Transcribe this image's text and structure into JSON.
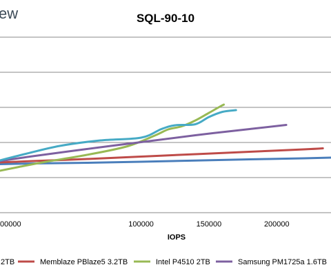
{
  "logo_text": "ew",
  "chart_data": {
    "type": "line",
    "title": "SQL-90-10",
    "xlabel": "IOPS",
    "ylabel": "",
    "xlim": [
      -4000,
      240000
    ],
    "x_ticks": [
      0,
      100000,
      150000,
      200000
    ],
    "x_tick_labels": [
      "00000",
      "100000",
      "150000",
      "200000"
    ],
    "grid": true,
    "legend_position": "bottom",
    "series": [
      {
        "name": "2TB",
        "legend_label": ".2TB",
        "color": "#4a7ebb",
        "x": [
          -4000,
          20000,
          60000,
          100000,
          140000,
          180000,
          220000,
          240000
        ],
        "y": [
          0.43,
          0.45,
          0.47,
          0.5,
          0.535,
          0.57,
          0.6,
          0.62
        ]
      },
      {
        "name": "Memblaze PBlaze5 3.2TB",
        "legend_label": "Memblaze PBlaze5 3.2TB",
        "color": "#be4b48",
        "x": [
          -4000,
          20000,
          60000,
          100000,
          140000,
          180000,
          220000,
          234000
        ],
        "y": [
          0.48,
          0.52,
          0.58,
          0.65,
          0.72,
          0.79,
          0.86,
          0.89
        ]
      },
      {
        "name": "Intel P4510 2TB",
        "legend_label": "Intel P4510 2TB",
        "color": "#98b954",
        "x": [
          -4000,
          10000,
          30000,
          60000,
          90000,
          110000,
          120000,
          130000,
          140000,
          150000,
          158000,
          161000
        ],
        "y": [
          0.24,
          0.35,
          0.5,
          0.7,
          0.95,
          1.26,
          1.44,
          1.53,
          1.7,
          1.92,
          2.1,
          2.16
        ]
      },
      {
        "name": "Samsung PM1725a 1.6TB",
        "legend_label": "Samsung PM1725a 1.6TB",
        "color": "#7d60a0",
        "x": [
          -4000,
          20000,
          60000,
          100000,
          140000,
          180000,
          207000
        ],
        "y": [
          0.52,
          0.66,
          0.87,
          1.07,
          1.27,
          1.45,
          1.57
        ]
      },
      {
        "name": "Light blue",
        "legend_label": "",
        "color": "#46aac5",
        "x": [
          -4000,
          15000,
          40000,
          70000,
          100000,
          115000,
          125000,
          140000,
          150000,
          160000,
          170000
        ],
        "y": [
          0.54,
          0.73,
          0.96,
          1.12,
          1.2,
          1.45,
          1.56,
          1.59,
          1.8,
          1.95,
          2.0
        ]
      }
    ]
  }
}
